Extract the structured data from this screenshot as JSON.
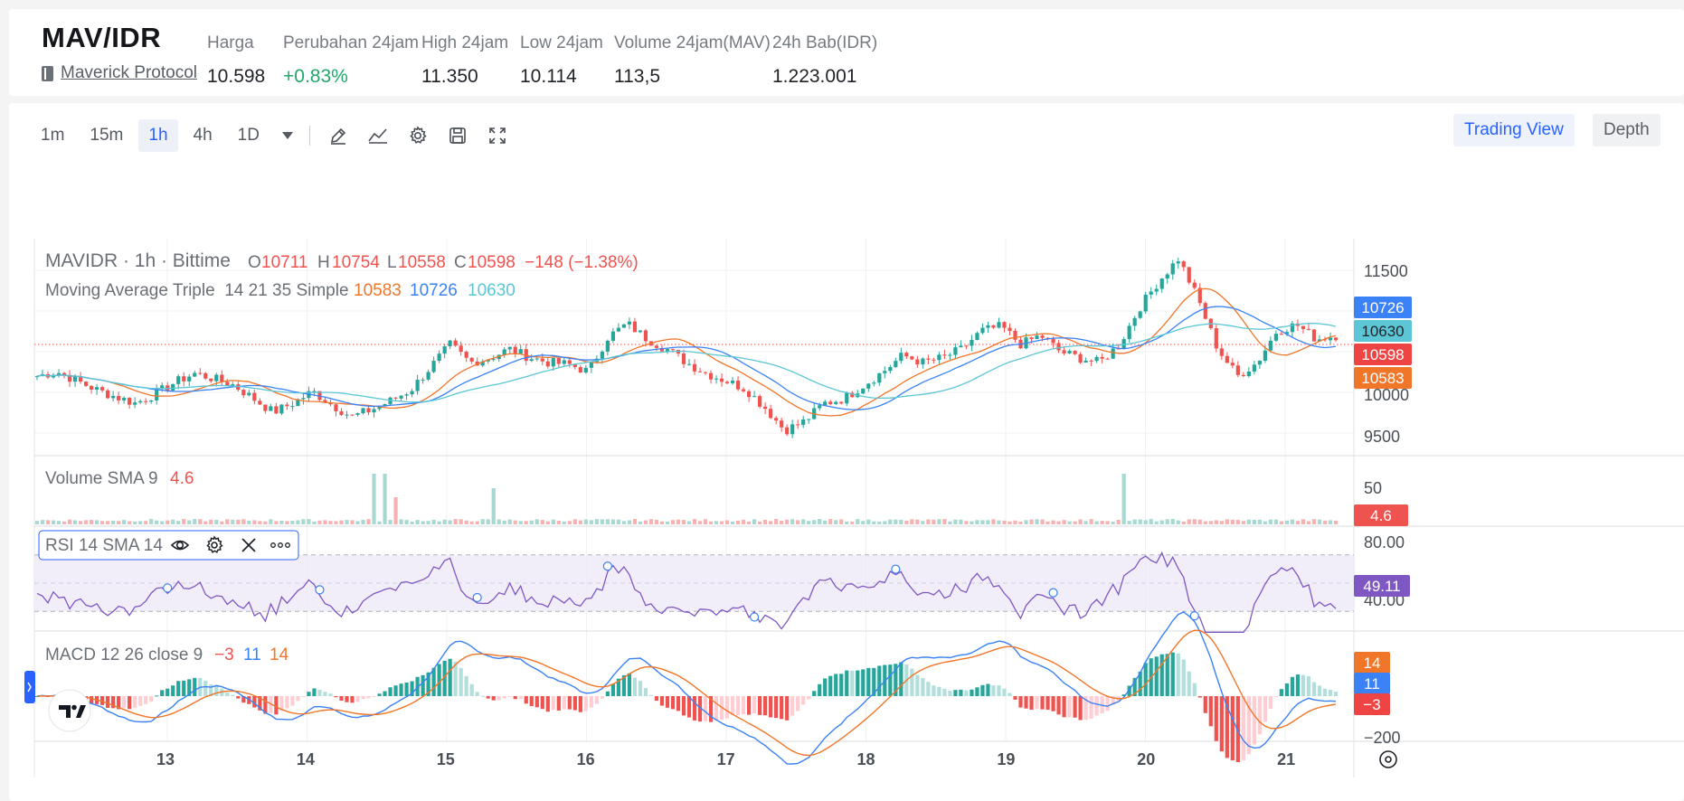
{
  "header": {
    "pair": "MAV/IDR",
    "project": "Maverick Protocol",
    "stats": [
      {
        "label": "Harga",
        "value": "10.598",
        "trend": ""
      },
      {
        "label": "Perubahan 24jam",
        "value": "+0.83%",
        "trend": "up"
      },
      {
        "label": "High 24jam",
        "value": "11.350",
        "trend": ""
      },
      {
        "label": "Low 24jam",
        "value": "10.114",
        "trend": ""
      },
      {
        "label": "Volume 24jam(MAV)",
        "value": "113,5",
        "trend": ""
      },
      {
        "label": "24h Bab(IDR)",
        "value": "1.223.001",
        "trend": ""
      }
    ]
  },
  "toolbar": {
    "timeframes": [
      "1m",
      "15m",
      "1h",
      "4h",
      "1D"
    ],
    "active_timeframe": "1h",
    "tools": [
      "pen-icon",
      "indicators-icon",
      "settings-icon",
      "save-icon",
      "fullscreen-icon"
    ],
    "trading_view_label": "Trading View",
    "depth_label": "Depth"
  },
  "legend": {
    "symbol": "MAVIDR · 1h · Bittime",
    "o_label": "O",
    "o": "10711",
    "h_label": "H",
    "h": "10754",
    "l_label": "L",
    "l": "10558",
    "c_label": "C",
    "c": "10598",
    "change": "−148 (−1.38%)",
    "ma_name": "Moving Average Triple  14 21 35 Simple",
    "ma_values": [
      "10583",
      "10726",
      "10630"
    ]
  },
  "price_axis": {
    "ticks": [
      "11500",
      "10000",
      "9500"
    ],
    "badges": [
      {
        "value": "10726",
        "color": "#3b82f6"
      },
      {
        "value": "10630",
        "color": "#5cc6d6"
      },
      {
        "value": "10598",
        "color": "#ef4444"
      },
      {
        "value": "10583",
        "color": "#f0762a"
      }
    ]
  },
  "volume_pane": {
    "name": "Volume SMA 9",
    "value": "4.6",
    "axis_tick": "50",
    "badge": "4.6"
  },
  "rsi_pane": {
    "name": "RSI 14 SMA 14",
    "tools": [
      "eye-icon",
      "gear-icon",
      "close-icon",
      "more-icon"
    ],
    "axis_ticks": [
      "80.00",
      "40.00"
    ],
    "badge": "49.11"
  },
  "macd_pane": {
    "name": "MACD 12 26 close 9",
    "values": [
      "−3",
      "11",
      "14"
    ],
    "axis_tick": "−200",
    "badges": [
      {
        "value": "14",
        "color": "#f0762a"
      },
      {
        "value": "11",
        "color": "#3b82f6"
      },
      {
        "value": "−3",
        "color": "#ef4444"
      }
    ]
  },
  "time_axis": {
    "labels": [
      "13",
      "14",
      "15",
      "16",
      "17",
      "18",
      "19",
      "20",
      "21"
    ]
  },
  "colors": {
    "up": "#26a69a",
    "down": "#ef5350",
    "ma14": "#f0762a",
    "ma21": "#3b82f6",
    "ma35": "#5cc6d6",
    "rsi": "#7e57c2",
    "accent": "#2962ff"
  },
  "price_path": [
    10150,
    10200,
    10100,
    10000,
    9920,
    9850,
    9950,
    10080,
    10180,
    10120,
    10050,
    9900,
    9750,
    9850,
    9980,
    9830,
    9700,
    9780,
    9880,
    10000,
    10250,
    10500,
    10300,
    10350,
    10450,
    10360,
    10300,
    10280,
    10200,
    10580,
    10730,
    10560,
    10450,
    10300,
    10180,
    10100,
    10010,
    9800,
    9550,
    9650,
    9850,
    9900,
    10050,
    10200,
    10380,
    10300,
    10350,
    10450,
    10650,
    10700,
    10500,
    10600,
    10420,
    10350,
    10300,
    10500,
    10900,
    11200,
    11450,
    11000,
    10450,
    10150,
    10300,
    10650,
    10720,
    10560,
    10598
  ]
}
